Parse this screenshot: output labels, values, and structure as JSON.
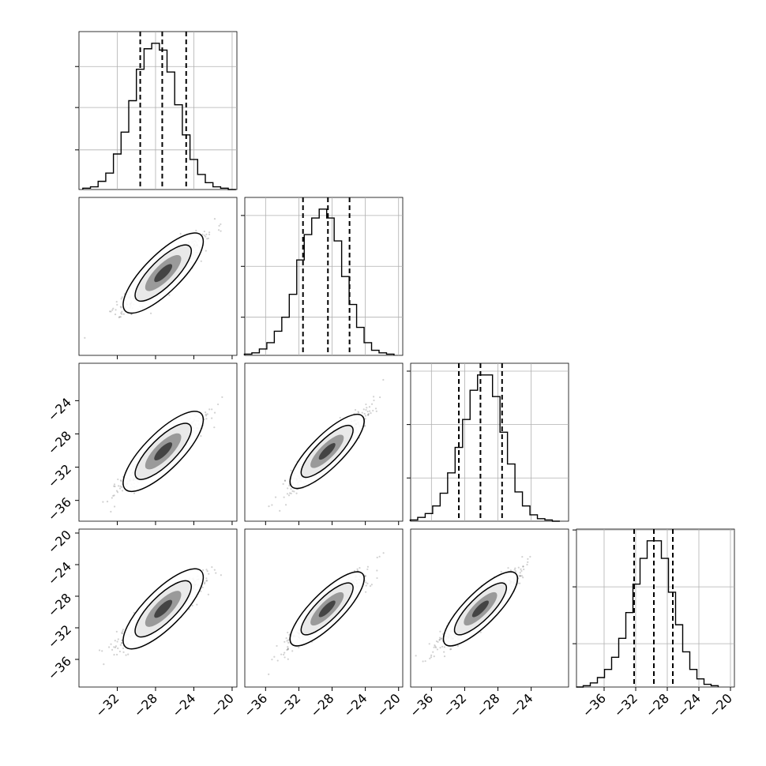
{
  "chart_data": {
    "type": "corner",
    "tick_labels": [
      "−36",
      "−32",
      "−28",
      "−24",
      "−20"
    ],
    "tick_values": [
      -36,
      -32,
      -28,
      -24,
      -20
    ],
    "parameters": [
      {
        "range": [
          -36,
          -19.5
        ],
        "xticks": [
          -32,
          -28,
          -24,
          -20
        ],
        "yticks": [
          -36,
          -32,
          -28,
          -24,
          -20
        ],
        "hist_centers": [
          -35.2,
          -34.4,
          -33.6,
          -32.8,
          -32.0,
          -31.2,
          -30.4,
          -29.6,
          -28.8,
          -28.0,
          -27.2,
          -26.4,
          -25.6,
          -24.8,
          -24.0,
          -23.2,
          -22.4,
          -21.6,
          -20.8,
          -20.0
        ],
        "hist_counts": [
          1,
          2,
          6,
          12,
          26,
          42,
          65,
          88,
          103,
          107,
          102,
          86,
          62,
          40,
          22,
          11,
          5,
          2,
          1,
          0
        ],
        "quantiles": [
          -29.6,
          -27.3,
          -24.8
        ],
        "y_gridlines": [
          29,
          60,
          90
        ]
      },
      {
        "range": [
          -38.5,
          -19.5
        ],
        "xticks": [
          -36,
          -32,
          -28,
          -24,
          -20
        ],
        "yticks": [],
        "hist_centers": [
          -38.1,
          -37.2,
          -36.3,
          -35.4,
          -34.5,
          -33.6,
          -32.7,
          -31.8,
          -30.9,
          -30.0,
          -29.1,
          -28.2,
          -27.3,
          -26.4,
          -25.5,
          -24.6,
          -23.7,
          -22.8,
          -21.9,
          -21.0
        ],
        "hist_counts": [
          1,
          2,
          5,
          10,
          19,
          30,
          48,
          75,
          95,
          108,
          115,
          108,
          90,
          62,
          40,
          22,
          10,
          4,
          2,
          1
        ],
        "quantiles": [
          -31.5,
          -28.5,
          -25.9
        ],
        "y_gridlines": [
          30,
          70,
          110
        ]
      },
      {
        "range": [
          -38.5,
          -19.5
        ],
        "xticks": [
          -36,
          -32,
          -28,
          -24
        ],
        "yticks": [
          -36,
          -32,
          -28,
          -24
        ],
        "hist_centers": [
          -38.1,
          -37.2,
          -36.3,
          -35.4,
          -34.5,
          -33.6,
          -32.7,
          -31.8,
          -30.9,
          -30.0,
          -29.1,
          -28.2,
          -27.3,
          -26.4,
          -25.5,
          -24.6,
          -23.7,
          -22.8,
          -21.9,
          -21.0
        ],
        "hist_counts": [
          1,
          3,
          6,
          12,
          22,
          38,
          58,
          80,
          103,
          115,
          115,
          98,
          70,
          45,
          23,
          12,
          5,
          2,
          1,
          0
        ],
        "quantiles": [
          -32.7,
          -30.1,
          -27.5
        ],
        "y_gridlines": [
          34,
          76,
          118
        ]
      },
      {
        "range": [
          -39.5,
          -19.5
        ],
        "xticks": [
          -36,
          -32,
          -28,
          -24,
          -20
        ],
        "yticks": [
          -36,
          -32,
          -28,
          -24,
          -20
        ],
        "hist_centers": [
          -39.1,
          -38.2,
          -37.3,
          -36.4,
          -35.5,
          -34.6,
          -33.7,
          -32.8,
          -31.9,
          -31.0,
          -30.1,
          -29.2,
          -28.3,
          -27.4,
          -26.5,
          -25.6,
          -24.7,
          -23.8,
          -22.9,
          -22.0
        ],
        "hist_counts": [
          0,
          1,
          3,
          7,
          13,
          22,
          36,
          55,
          76,
          95,
          108,
          108,
          95,
          70,
          46,
          26,
          13,
          6,
          2,
          1
        ],
        "quantiles": [
          -32.2,
          -29.7,
          -27.3
        ],
        "y_gridlines": [
          32,
          74,
          116
        ]
      }
    ],
    "scatter": [
      {
        "row": 1,
        "col": 0,
        "center": [
          -27.2,
          -28.6
        ],
        "slope": 1.0,
        "spread_major": 2.8,
        "spread_minor": 0.6
      },
      {
        "row": 2,
        "col": 0,
        "center": [
          -27.2,
          -30.1
        ],
        "slope": 1.0,
        "spread_major": 2.8,
        "spread_minor": 0.6
      },
      {
        "row": 2,
        "col": 1,
        "center": [
          -28.6,
          -30.1
        ],
        "slope": 1.0,
        "spread_major": 3.0,
        "spread_minor": 0.6
      },
      {
        "row": 3,
        "col": 0,
        "center": [
          -27.2,
          -29.6
        ],
        "slope": 1.0,
        "spread_major": 2.8,
        "spread_minor": 0.6
      },
      {
        "row": 3,
        "col": 1,
        "center": [
          -28.6,
          -29.6
        ],
        "slope": 1.0,
        "spread_major": 3.0,
        "spread_minor": 0.6
      },
      {
        "row": 3,
        "col": 2,
        "center": [
          -30.1,
          -29.6
        ],
        "slope": 1.0,
        "spread_major": 3.0,
        "spread_minor": 0.6
      }
    ],
    "grid": true
  }
}
